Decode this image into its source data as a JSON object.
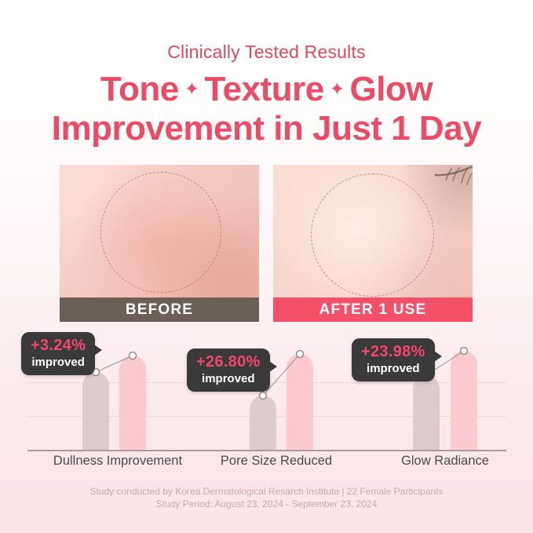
{
  "header": {
    "eyebrow": "Clinically Tested Results",
    "sparkle": "✦",
    "title_line1_parts": [
      "Tone",
      "Texture",
      "Glow"
    ],
    "title_line2": "Improvement in Just 1 Day"
  },
  "comparison": {
    "before_label": "BEFORE",
    "after_label": "AFTER 1 USE"
  },
  "chart_data": {
    "type": "bar",
    "title": "",
    "categories": [
      "Dullness Improvement",
      "Pore Size Reduced",
      "Glow Radiance"
    ],
    "series": [
      {
        "name": "Before",
        "color": "#decbce",
        "values": [
          64,
          45,
          62
        ]
      },
      {
        "name": "After 1 Use",
        "color": "#fbc9ce",
        "values": [
          78,
          79,
          82
        ]
      }
    ],
    "annotations": [
      {
        "value": "+3.24%",
        "label": "improved"
      },
      {
        "value": "+26.80%",
        "label": "improved"
      },
      {
        "value": "+23.98%",
        "label": "improved"
      }
    ],
    "ylim": [
      0,
      100
    ],
    "grid": true,
    "legend": "none"
  },
  "footer": {
    "line1": "Study conducted by Korea Dermatological Resarch Institute | 22 Female Participants",
    "line2": "Study Period: August 23, 2024 - September 23, 2024"
  },
  "colors": {
    "accent": "#ec4b65",
    "eyebrow_text": "#e0495f",
    "before_bar_bg": "#6c5f57",
    "after_bar_bg": "#f4506a",
    "chart_before_bar": "#decbce",
    "chart_after_bar": "#fbc9ce",
    "badge_bg": "#3b3a3a",
    "badge_value_text": "#f2466b",
    "category_text": "#4b4b4b",
    "footer_text": "#c9a7ad"
  }
}
